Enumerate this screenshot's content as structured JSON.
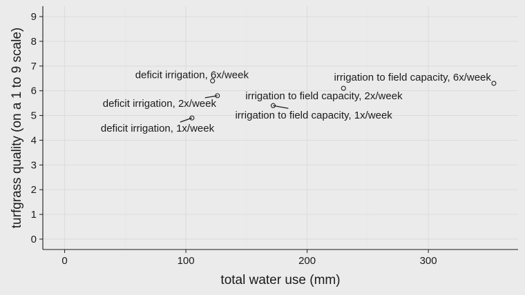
{
  "chart_data": {
    "type": "scatter",
    "title": "",
    "xlabel": "total water use (mm)",
    "ylabel": "turfgrass quality (on a 1 to 9 scale)",
    "xlim": [
      -18,
      374
    ],
    "ylim": [
      -0.42,
      9.42
    ],
    "xticks": [
      0,
      100,
      200,
      300
    ],
    "yticks": [
      0,
      1,
      2,
      3,
      4,
      5,
      6,
      7,
      8,
      9
    ],
    "grid": true,
    "points": [
      {
        "label": "deficit irrigation, 6x/week",
        "x": 122,
        "y": 6.4
      },
      {
        "label": "deficit irrigation, 2x/week",
        "x": 126,
        "y": 5.8
      },
      {
        "label": "deficit irrigation, 1x/week",
        "x": 105,
        "y": 4.9
      },
      {
        "label": "irrigation to field capacity, 6x/week",
        "x": 354,
        "y": 6.3
      },
      {
        "label": "irrigation to field capacity, 2x/week",
        "x": 230,
        "y": 6.1
      },
      {
        "label": "irrigation to field capacity, 1x/week",
        "x": 172,
        "y": 5.4
      }
    ]
  }
}
